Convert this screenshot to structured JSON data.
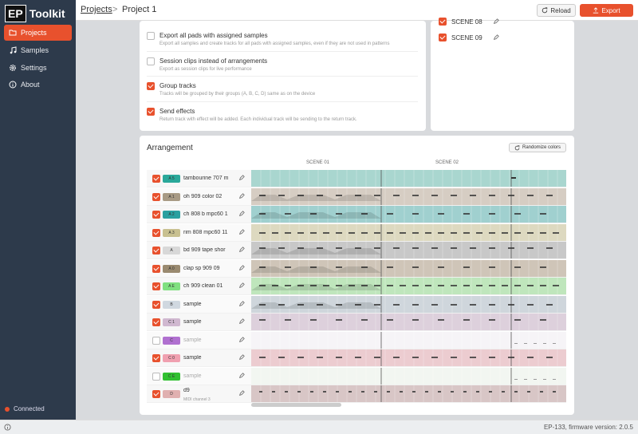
{
  "app": {
    "logo_mark": "EP",
    "logo_text": "Toolkit"
  },
  "sidebar": {
    "items": [
      {
        "label": "Projects",
        "icon": "folder-icon",
        "active": true
      },
      {
        "label": "Samples",
        "icon": "music-note-icon",
        "active": false
      },
      {
        "label": "Settings",
        "icon": "gear-icon",
        "active": false
      },
      {
        "label": "About",
        "icon": "info-icon",
        "active": false
      }
    ],
    "status": "Connected"
  },
  "header": {
    "breadcrumb_root": "Projects",
    "breadcrumb_sep": ">",
    "breadcrumb_current": "Project 1",
    "reload_label": "Reload",
    "export_label": "Export"
  },
  "options": [
    {
      "title": "Export all pads with assigned samples",
      "desc": "Export all samples and create tracks for all pads with assigned samples, even if they are not used in patterns",
      "checked": false
    },
    {
      "title": "Session clips instead of arrangements",
      "desc": "Export as session clips for live performance",
      "checked": false
    },
    {
      "title": "Group tracks",
      "desc": "Tracks will be grouped by their groups (A, B, C, D) same as on the device",
      "checked": true
    },
    {
      "title": "Send effects",
      "desc": "Return track with effect will be added. Each individual track will be sending to the return track.",
      "checked": true
    }
  ],
  "scenes": [
    {
      "label": "SCENE 08",
      "checked": true
    },
    {
      "label": "SCENE 09",
      "checked": true
    }
  ],
  "arrangement": {
    "title": "Arrangement",
    "randomize_label": "Randomize colors",
    "scene_labels": [
      "SCENE 01",
      "SCENE 02"
    ],
    "tracks": [
      {
        "tag": "A 5",
        "name": "tambourine 707 m",
        "sub": "",
        "checked": true,
        "color": "#2aa89a",
        "lane": "#a9d6cf"
      },
      {
        "tag": "A 1",
        "name": "oh 909 color 02",
        "sub": "",
        "checked": true,
        "color": "#a89a84",
        "lane": "#d6cdc3"
      },
      {
        "tag": "A 2",
        "name": "ch 808 b mpc60 1",
        "sub": "",
        "checked": true,
        "color": "#2aa0a0",
        "lane": "#a0d0cf"
      },
      {
        "tag": "A 3",
        "name": "rim 808 mpc60 11",
        "sub": "",
        "checked": true,
        "color": "#c8c090",
        "lane": "#ddd9c0"
      },
      {
        "tag": "A",
        "name": "bd 909 tape shor",
        "sub": "",
        "checked": true,
        "color": "#d8d8d8",
        "lane": "#c8c8c8"
      },
      {
        "tag": "A 0",
        "name": "clap sp 909 09",
        "sub": "",
        "checked": true,
        "color": "#9a8a70",
        "lane": "#cfc5b8"
      },
      {
        "tag": "A E",
        "name": "ch 909 clean 01",
        "sub": "",
        "checked": true,
        "color": "#80e080",
        "lane": "#bfe6bc"
      },
      {
        "tag": "B",
        "name": "sample",
        "sub": "",
        "checked": true,
        "color": "#d0d8e0",
        "lane": "#cfd6dc"
      },
      {
        "tag": "C 1",
        "name": "sample",
        "sub": "",
        "checked": true,
        "color": "#d0b8d0",
        "lane": "#ddd0dc"
      },
      {
        "tag": "C",
        "name": "sample",
        "sub": "",
        "checked": false,
        "color": "#b070d0",
        "lane": "#f6f4f7"
      },
      {
        "tag": "C 0",
        "name": "sample",
        "sub": "",
        "checked": true,
        "color": "#f0a0b0",
        "lane": "#ecccd0"
      },
      {
        "tag": "C E",
        "name": "sample",
        "sub": "",
        "checked": false,
        "color": "#30c030",
        "lane": "#f2f6f1"
      },
      {
        "tag": "D",
        "name": "d9",
        "sub": "MIDI channel 3",
        "checked": true,
        "color": "#e0b0b0",
        "lane": "#d8c6c6"
      }
    ]
  },
  "footer": {
    "device": "EP-133, firmware version: 2.0.5"
  }
}
